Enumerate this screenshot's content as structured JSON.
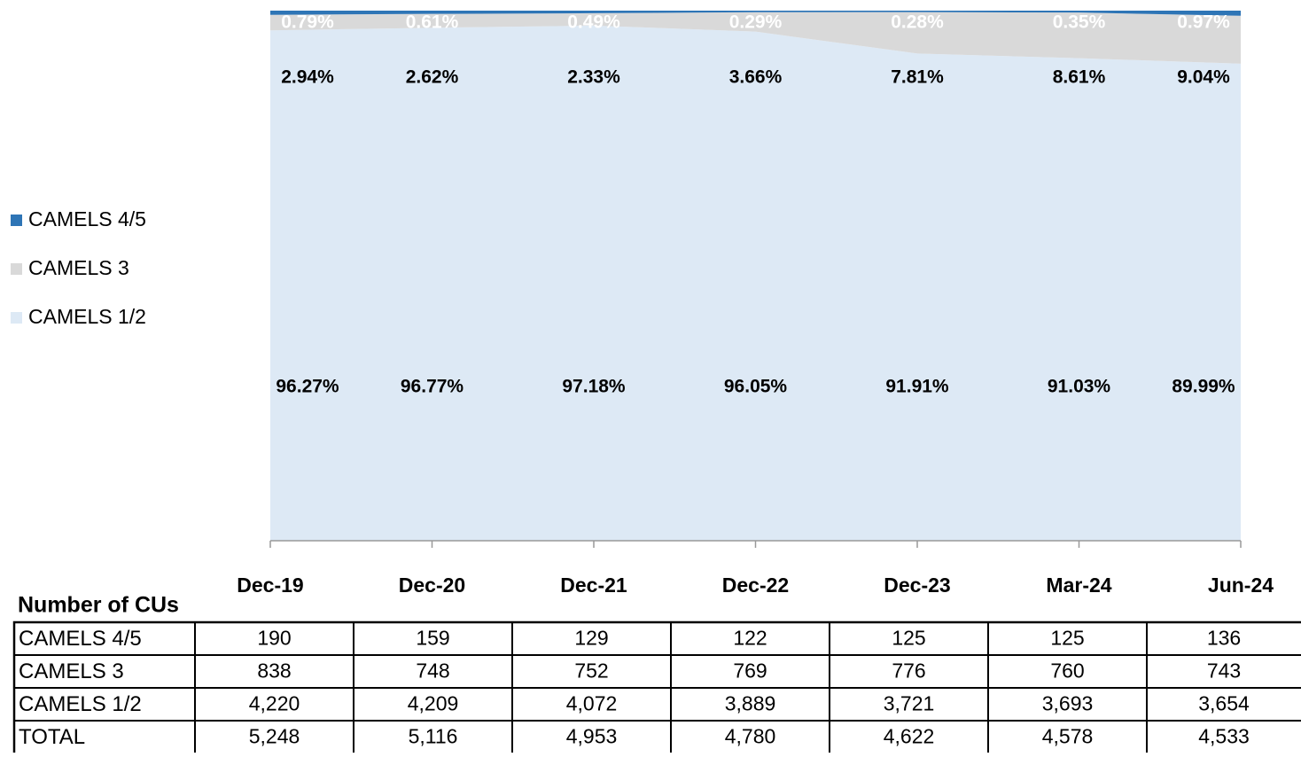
{
  "chart_data": {
    "type": "stacked-area",
    "categories": [
      "Dec-19",
      "Dec-20",
      "Dec-21",
      "Dec-22",
      "Dec-23",
      "Mar-24",
      "Jun-24"
    ],
    "series": [
      {
        "name": "CAMELS 1/2",
        "color": "#dde9f5",
        "values": [
          96.27,
          96.77,
          97.18,
          96.05,
          91.91,
          91.03,
          89.99
        ],
        "value_labels": [
          "96.27%",
          "96.77%",
          "97.18%",
          "96.05%",
          "91.91%",
          "91.03%",
          "89.99%"
        ]
      },
      {
        "name": "CAMELS 3",
        "color": "#d9d9d9",
        "values": [
          2.94,
          2.62,
          2.33,
          3.66,
          7.81,
          8.61,
          9.04
        ],
        "value_labels": [
          "2.94%",
          "2.62%",
          "2.33%",
          "3.66%",
          "7.81%",
          "8.61%",
          "9.04%"
        ]
      },
      {
        "name": "CAMELS 4/5",
        "color": "#2e75b6",
        "values": [
          0.79,
          0.61,
          0.49,
          0.29,
          0.28,
          0.35,
          0.97
        ],
        "value_labels": [
          "0.79%",
          "0.61%",
          "0.49%",
          "0.29%",
          "0.28%",
          "0.35%",
          "0.97%"
        ]
      }
    ],
    "ylim": [
      0,
      100
    ],
    "legend": "left"
  },
  "table": {
    "title": "Number of CUs",
    "rows": [
      [
        "CAMELS 4/5",
        "190",
        "159",
        "129",
        "122",
        "125",
        "125",
        "136"
      ],
      [
        "CAMELS 3",
        "838",
        "748",
        "752",
        "769",
        "776",
        "760",
        "743"
      ],
      [
        "CAMELS 1/2",
        "4,220",
        "4,209",
        "4,072",
        "3,889",
        "3,721",
        "3,693",
        "3,654"
      ],
      [
        "TOTAL",
        "5,248",
        "5,116",
        "4,953",
        "4,780",
        "4,622",
        "4,578",
        "4,533"
      ]
    ]
  }
}
